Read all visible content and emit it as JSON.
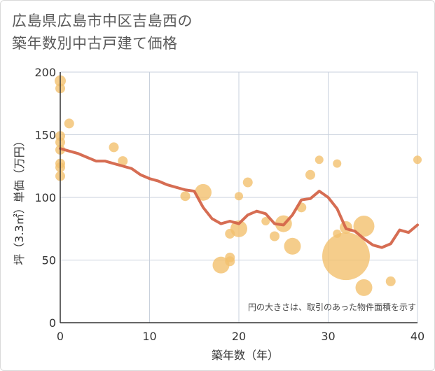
{
  "title_line1": "広島県広島市中区吉島西の",
  "title_line2": "築年数別中古戸建て価格",
  "chart_data": {
    "type": "scatter",
    "title": "広島県広島市中区吉島西の築年数別中古戸建て価格",
    "xlabel": "築年数（年）",
    "ylabel": "坪（3.3㎡）単価（万円）",
    "xlim": [
      0,
      40
    ],
    "ylim": [
      0,
      200
    ],
    "xticks": [
      0,
      10,
      20,
      30,
      40
    ],
    "yticks": [
      0,
      50,
      100,
      150,
      200
    ],
    "grid": true,
    "annotation": "円の大きさは、取引のあった物件面積を示す",
    "colors": {
      "bubble": "#f2c16e",
      "line": "#d4654a",
      "grid": "#c8d0dc"
    },
    "points": [
      {
        "x": 0,
        "y": 193,
        "s": 8
      },
      {
        "x": 0,
        "y": 187,
        "s": 7
      },
      {
        "x": 0,
        "y": 149,
        "s": 7
      },
      {
        "x": 0,
        "y": 144,
        "s": 7
      },
      {
        "x": 0,
        "y": 138,
        "s": 7
      },
      {
        "x": 0,
        "y": 127,
        "s": 7
      },
      {
        "x": 0,
        "y": 124,
        "s": 7
      },
      {
        "x": 0,
        "y": 117,
        "s": 7
      },
      {
        "x": 1,
        "y": 159,
        "s": 7
      },
      {
        "x": 6,
        "y": 140,
        "s": 7
      },
      {
        "x": 7,
        "y": 129,
        "s": 7
      },
      {
        "x": 14,
        "y": 101,
        "s": 7
      },
      {
        "x": 16,
        "y": 104,
        "s": 12
      },
      {
        "x": 18,
        "y": 46,
        "s": 12
      },
      {
        "x": 19,
        "y": 52,
        "s": 7
      },
      {
        "x": 19,
        "y": 49,
        "s": 7
      },
      {
        "x": 19,
        "y": 71,
        "s": 7
      },
      {
        "x": 20,
        "y": 101,
        "s": 6
      },
      {
        "x": 20,
        "y": 75,
        "s": 12
      },
      {
        "x": 21,
        "y": 112,
        "s": 7
      },
      {
        "x": 23,
        "y": 81,
        "s": 6
      },
      {
        "x": 24,
        "y": 69,
        "s": 7
      },
      {
        "x": 25,
        "y": 79,
        "s": 12
      },
      {
        "x": 26,
        "y": 61,
        "s": 12
      },
      {
        "x": 27,
        "y": 92,
        "s": 7
      },
      {
        "x": 28,
        "y": 118,
        "s": 7
      },
      {
        "x": 29,
        "y": 130,
        "s": 6
      },
      {
        "x": 31,
        "y": 127,
        "s": 6
      },
      {
        "x": 31,
        "y": 71,
        "s": 6
      },
      {
        "x": 32,
        "y": 53,
        "s": 34
      },
      {
        "x": 32,
        "y": 76,
        "s": 9
      },
      {
        "x": 34,
        "y": 77,
        "s": 15
      },
      {
        "x": 34,
        "y": 28,
        "s": 12
      },
      {
        "x": 37,
        "y": 33,
        "s": 7
      },
      {
        "x": 40,
        "y": 130,
        "s": 6
      }
    ],
    "trend": {
      "x": [
        0,
        1,
        2,
        3,
        4,
        5,
        6,
        7,
        8,
        9,
        10,
        11,
        12,
        13,
        14,
        15,
        16,
        17,
        18,
        19,
        20,
        21,
        22,
        23,
        24,
        25,
        26,
        27,
        28,
        29,
        30,
        31,
        32,
        33,
        34,
        35,
        36,
        37,
        38,
        39,
        40
      ],
      "y": [
        139,
        137,
        135,
        132,
        129,
        129,
        127,
        125,
        123,
        118,
        115,
        113,
        110,
        108,
        106,
        105,
        92,
        83,
        79,
        81,
        79,
        86,
        89,
        87,
        79,
        78,
        86,
        98,
        99,
        105,
        100,
        91,
        75,
        73,
        67,
        62,
        60,
        63,
        74,
        72,
        78
      ]
    }
  }
}
